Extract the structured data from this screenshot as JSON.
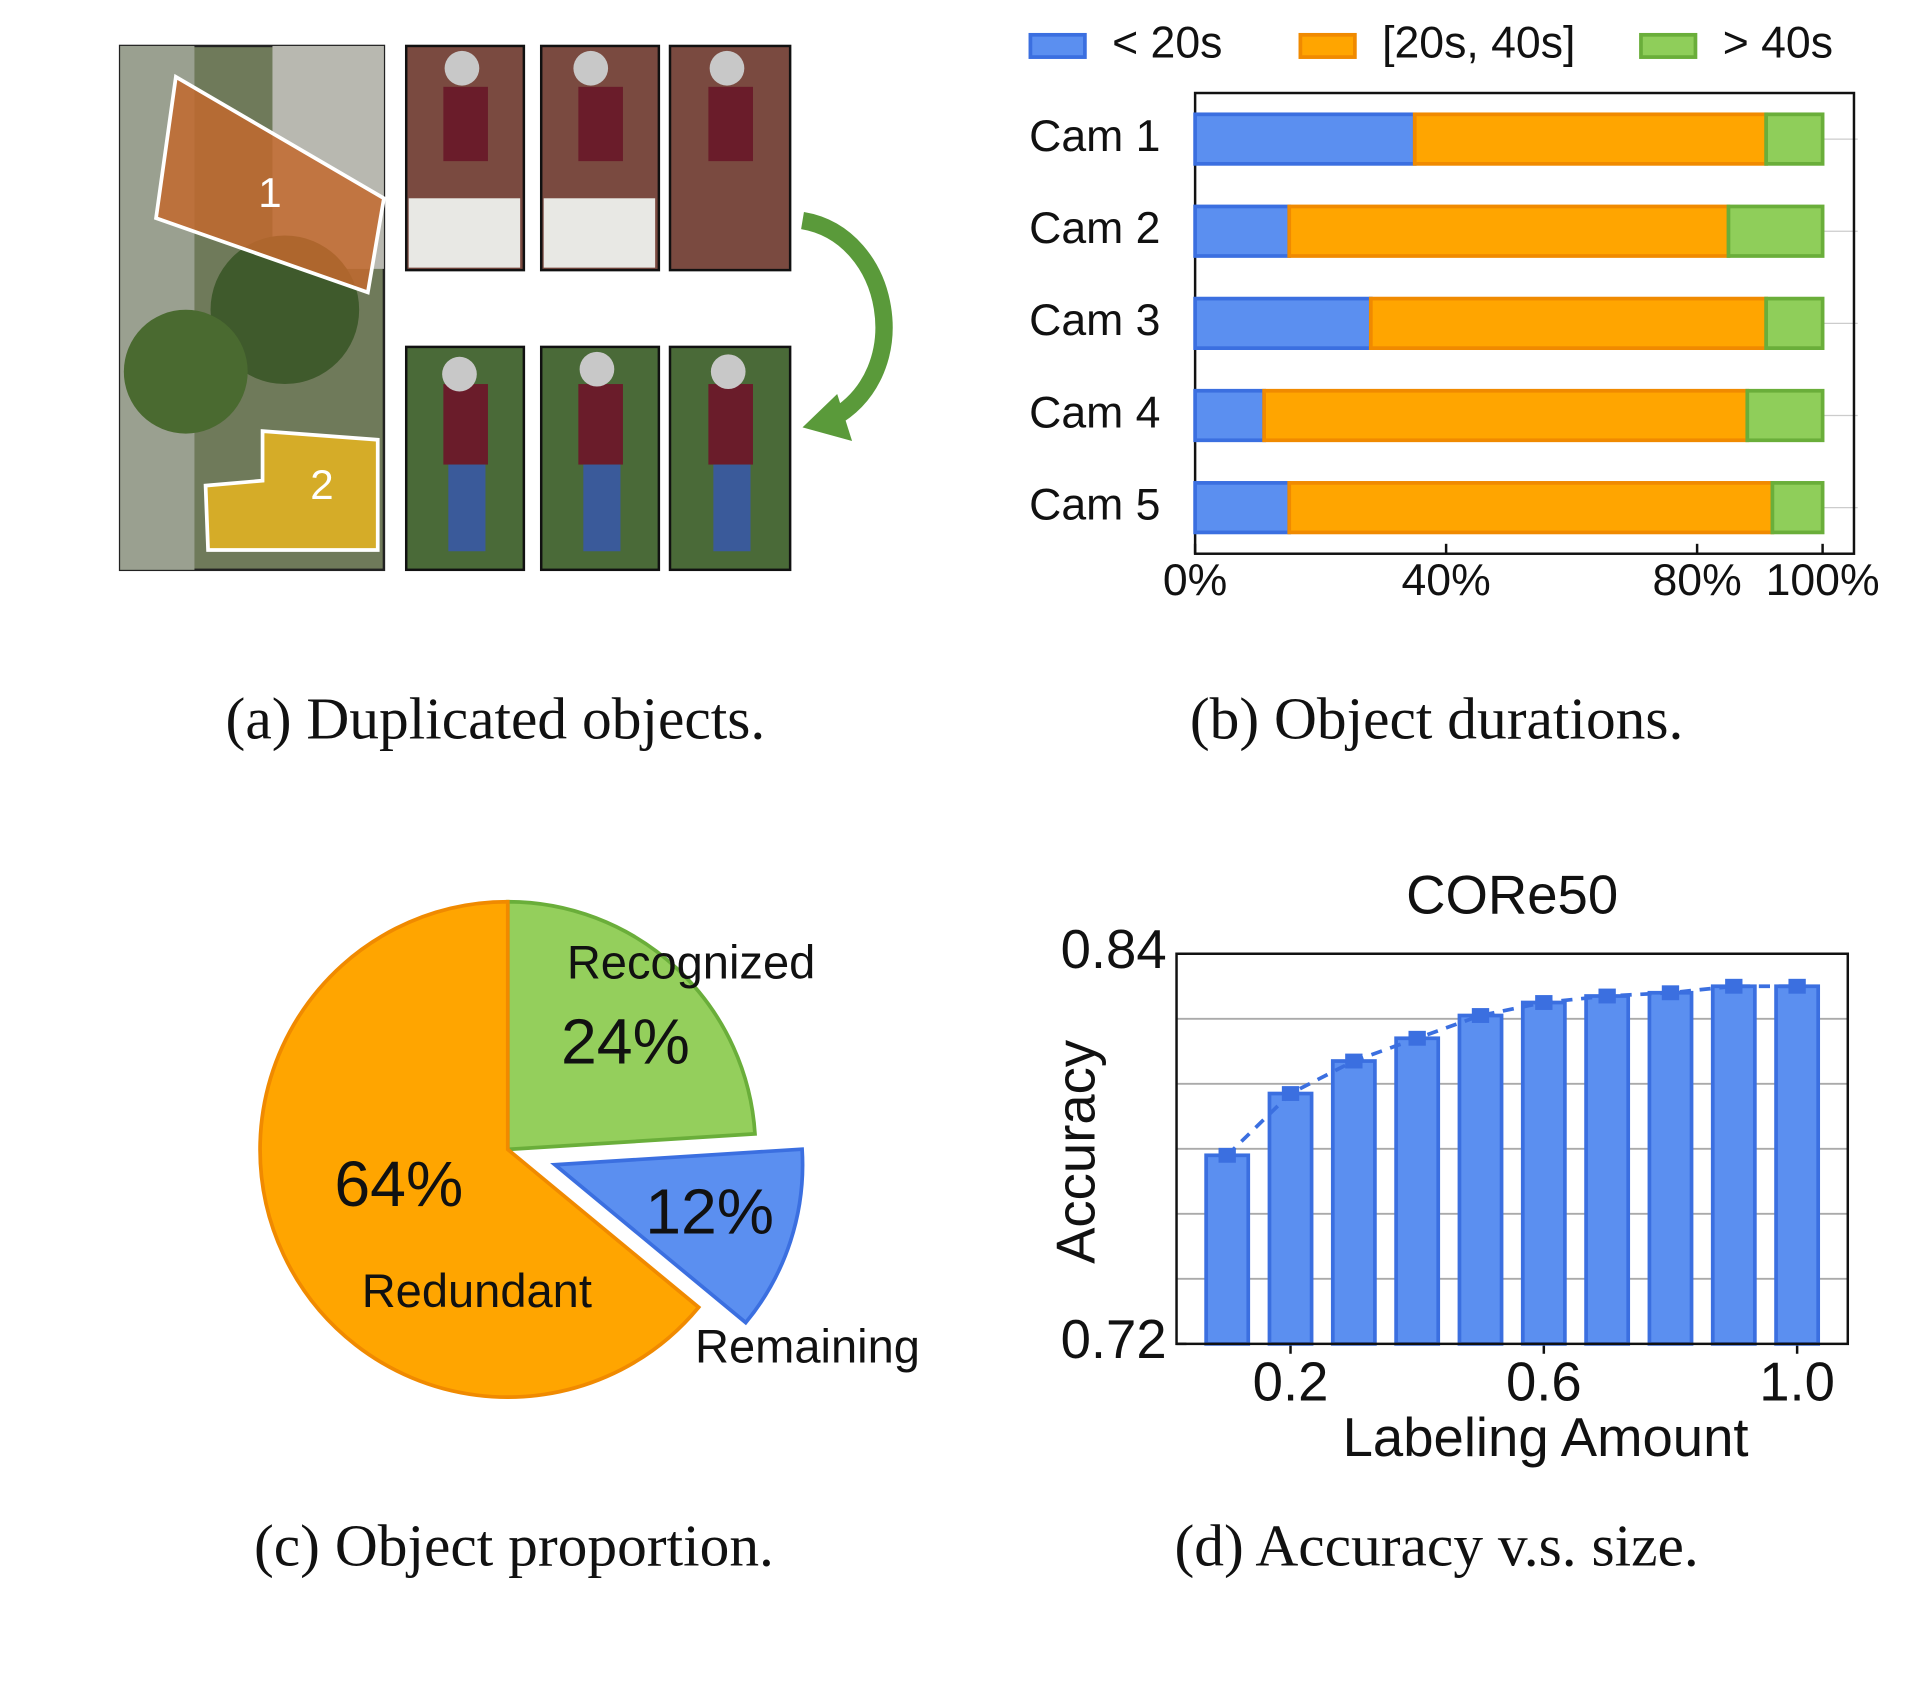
{
  "captions": [
    "(a) Duplicated objects.",
    "(b) Object durations.",
    "(c) Object proportion.",
    "(d) Accuracy v.s. size."
  ],
  "image_labels": [
    "1",
    "2"
  ],
  "chart_data": [
    {
      "type": "bar",
      "orientation": "horizontal",
      "stacked": true,
      "categories": [
        "Cam 1",
        "Cam 2",
        "Cam 3",
        "Cam 4",
        "Cam 5"
      ],
      "series": [
        {
          "name": "< 20s",
          "color": "#5b8ff0",
          "values": [
            35,
            15,
            28,
            11,
            15
          ]
        },
        {
          "name": "[20s, 40s]",
          "color": "#ffa500",
          "values": [
            56,
            70,
            63,
            77,
            77
          ]
        },
        {
          "name": "> 40s",
          "color": "#8fce5a",
          "values": [
            9,
            15,
            9,
            12,
            8
          ]
        }
      ],
      "xlim": [
        0,
        105
      ],
      "xticks": [
        {
          "value": 0,
          "label": "0%"
        },
        {
          "value": 40,
          "label": "40%"
        },
        {
          "value": 80,
          "label": "80%"
        },
        {
          "value": 100,
          "label": "100%"
        }
      ],
      "legend": "top"
    },
    {
      "type": "pie",
      "categories": [
        "Recognized",
        "Remaining",
        "Redundant"
      ],
      "values": [
        24,
        12,
        64
      ],
      "value_labels": [
        "24%",
        "12%",
        "64%"
      ],
      "colors": [
        "#94cf5c",
        "#5b8ff0",
        "#ffa500"
      ],
      "explode": [
        0,
        1,
        0
      ]
    },
    {
      "type": "bar",
      "title": "CORe50",
      "xlabel": "Labeling Amount",
      "ylabel": "Accuracy",
      "x": [
        0.1,
        0.2,
        0.3,
        0.4,
        0.5,
        0.6,
        0.7,
        0.8,
        0.9,
        1.0
      ],
      "values": [
        0.778,
        0.797,
        0.807,
        0.814,
        0.821,
        0.825,
        0.827,
        0.828,
        0.83,
        0.83
      ],
      "color": "#5b8ff0",
      "line": "dashed",
      "xlim": [
        0.02,
        1.08
      ],
      "xticks": [
        0.2,
        0.6,
        {
          "value": 1.0,
          "label": "1.0"
        }
      ],
      "ylim": [
        0.72,
        0.84
      ],
      "yticks": [
        0.72,
        0.84
      ],
      "ygrid": [
        0.74,
        0.76,
        0.78,
        0.8,
        0.82
      ],
      "grid": true
    }
  ]
}
